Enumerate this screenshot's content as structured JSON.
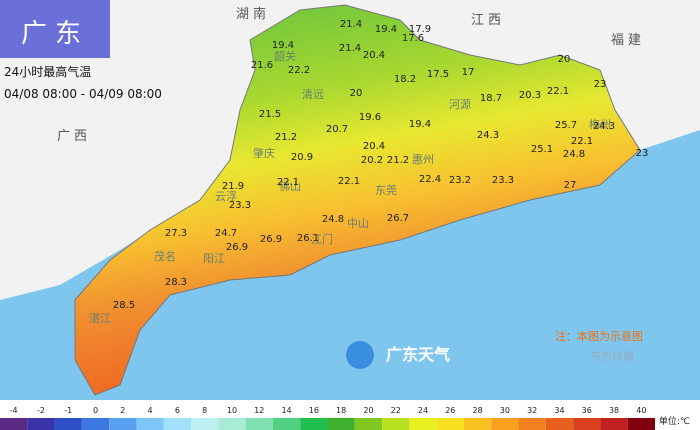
{
  "header": {
    "region": "广东",
    "title": "24小时最高气温",
    "period": "04/08 08:00 - 04/09 08:00"
  },
  "neighbors": [
    "湖南",
    "江西",
    "福建",
    "广西"
  ],
  "cities": [
    "清远",
    "肇庆",
    "佛山",
    "云浮",
    "阳江",
    "茂名",
    "湛江",
    "河源",
    "梅州",
    "惠州",
    "东莞",
    "江门",
    "中山",
    "韶关"
  ],
  "temperatures": [
    19.4,
    21.4,
    19.4,
    17.9,
    21.6,
    22.2,
    21.4,
    20.4,
    17.6,
    20,
    18.2,
    17.5,
    17,
    20,
    18.7,
    20.3,
    22.1,
    23,
    21.5,
    19.6,
    19.4,
    20.7,
    21.2,
    22.1,
    20.4,
    24.3,
    25.7,
    24.3,
    25.1,
    24.8,
    20.9,
    22.1,
    20.2,
    21.2,
    22.4,
    23.2,
    23.3,
    27,
    21.9,
    22.1,
    23.3,
    24.7,
    24.8,
    26.7,
    27.3,
    26.9,
    26.9,
    26.1,
    28.3,
    28.5,
    23
  ],
  "note": "注：本图为示意图",
  "logo": "广东天气",
  "credit": "东方祥瑞",
  "legend": {
    "ticks": [
      -4,
      -2,
      -1,
      0,
      2,
      4,
      6,
      8,
      10,
      12,
      14,
      16,
      18,
      20,
      22,
      24,
      26,
      28,
      30,
      32,
      34,
      36,
      38,
      40
    ],
    "unit": "单位:℃",
    "colors": [
      "#5a2a86",
      "#3a34a8",
      "#2d50c8",
      "#3c78e0",
      "#5aa0f0",
      "#7cc6f8",
      "#a0e0f8",
      "#bdf0f0",
      "#a8ecd8",
      "#80e0b0",
      "#50d080",
      "#20c050",
      "#40b030",
      "#80c820",
      "#b8e020",
      "#e8f020",
      "#f8e020",
      "#f8c020",
      "#f8a020",
      "#f08020",
      "#e86020",
      "#d84020",
      "#c02020",
      "#800010"
    ]
  }
}
